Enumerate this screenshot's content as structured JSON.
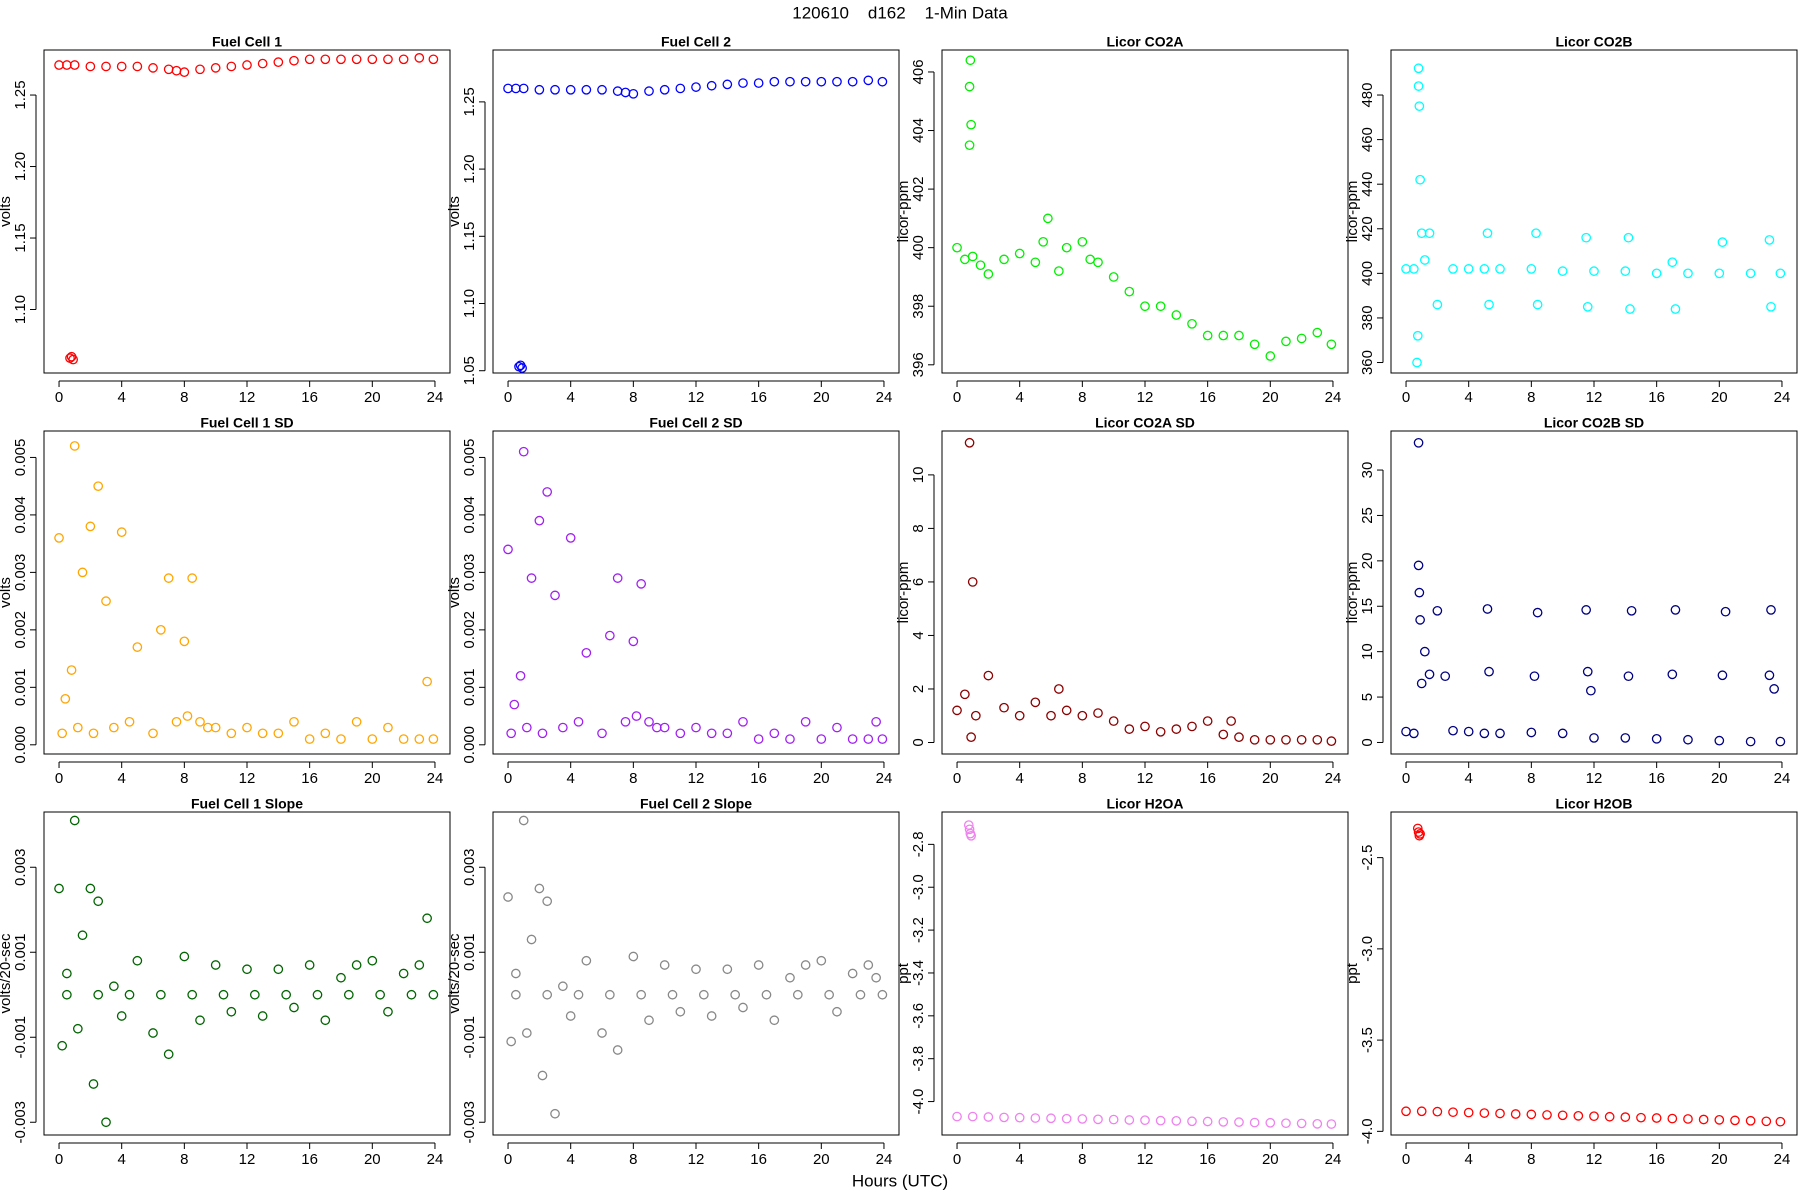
{
  "title": "120610    d162    1-Min Data",
  "xlabel": "Hours (UTC)",
  "chart_data": [
    {
      "type": "scatter",
      "title": "Fuel Cell 1",
      "ylabel": "volts",
      "color": "#ff0000",
      "x": [
        0,
        0.5,
        0.7,
        0.8,
        0.9,
        1,
        2,
        3,
        4,
        5,
        6,
        7,
        7.5,
        8,
        9,
        10,
        11,
        12,
        13,
        14,
        15,
        16,
        17,
        18,
        19,
        20,
        21,
        22,
        23,
        23.9
      ],
      "values": [
        1.271,
        1.271,
        1.066,
        1.067,
        1.065,
        1.271,
        1.27,
        1.27,
        1.27,
        1.27,
        1.269,
        1.268,
        1.267,
        1.266,
        1.268,
        1.269,
        1.27,
        1.271,
        1.272,
        1.273,
        1.274,
        1.275,
        1.275,
        1.275,
        1.275,
        1.275,
        1.275,
        1.275,
        1.276,
        1.275
      ],
      "xlim": [
        -0.96,
        24.96
      ],
      "xticks": [
        0,
        4,
        8,
        12,
        16,
        20,
        24
      ],
      "ylim": [
        1.0556,
        1.2815
      ],
      "yticks": [
        {
          "value": 1.1,
          "label": "1.10"
        },
        1.15,
        {
          "value": 1.2,
          "label": "1.20"
        },
        1.25
      ]
    },
    {
      "type": "scatter",
      "title": "Fuel Cell 2",
      "ylabel": "volts",
      "color": "#0000ff",
      "x": [
        0,
        0.5,
        0.7,
        0.8,
        0.9,
        1,
        2,
        3,
        4,
        5,
        6,
        7,
        7.5,
        8,
        9,
        10,
        11,
        12,
        13,
        14,
        15,
        16,
        17,
        18,
        19,
        20,
        21,
        22,
        23,
        23.9
      ],
      "values": [
        1.26,
        1.26,
        1.053,
        1.054,
        1.052,
        1.26,
        1.259,
        1.259,
        1.259,
        1.259,
        1.259,
        1.258,
        1.257,
        1.256,
        1.258,
        1.259,
        1.26,
        1.261,
        1.262,
        1.263,
        1.264,
        1.264,
        1.265,
        1.265,
        1.265,
        1.265,
        1.265,
        1.265,
        1.266,
        1.265
      ],
      "xlim": [
        -0.96,
        24.96
      ],
      "xticks": [
        0,
        4,
        8,
        12,
        16,
        20,
        24
      ],
      "ylim": [
        1.0483,
        1.2886
      ],
      "yticks": [
        1.05,
        {
          "value": 1.1,
          "label": "1.10"
        },
        1.15,
        {
          "value": 1.2,
          "label": "1.20"
        },
        1.25
      ]
    },
    {
      "type": "scatter",
      "title": "Licor CO2A",
      "ylabel": "licor-ppm",
      "color": "#00ee00",
      "x": [
        0,
        0.5,
        0.8,
        0.8,
        0.85,
        0.9,
        1,
        1.5,
        2,
        3,
        4,
        5,
        5.5,
        5.8,
        6.5,
        7,
        8,
        8.5,
        9,
        10,
        11,
        12,
        13,
        14,
        15,
        16,
        17,
        18,
        19,
        20,
        21,
        22,
        23,
        23.9
      ],
      "values": [
        400.0,
        399.6,
        403.5,
        405.5,
        406.4,
        404.2,
        399.7,
        399.4,
        399.1,
        399.6,
        399.8,
        399.5,
        400.2,
        401.0,
        399.2,
        400.0,
        400.2,
        399.6,
        399.5,
        399.0,
        398.5,
        398.0,
        398.0,
        397.7,
        397.4,
        397.0,
        397.0,
        397.0,
        396.7,
        396.3,
        396.8,
        396.9,
        397.1,
        396.7
      ],
      "xlim": [
        -0.96,
        24.96
      ],
      "xticks": [
        0,
        4,
        8,
        12,
        16,
        20,
        24
      ],
      "ylim": [
        395.72,
        406.75
      ],
      "yticks": [
        396,
        398,
        400,
        402,
        404,
        406
      ]
    },
    {
      "type": "scatter",
      "title": "Licor CO2B",
      "ylabel": "licor-ppm",
      "color": "#00ffff",
      "x": [
        0,
        0.5,
        0.7,
        0.75,
        0.8,
        0.8,
        0.85,
        0.9,
        1,
        1.2,
        1.5,
        2,
        3,
        4,
        5,
        5.2,
        5.3,
        6,
        8,
        8.3,
        8.4,
        10,
        11.5,
        11.6,
        12,
        14,
        14.2,
        14.3,
        16,
        17,
        17.2,
        18,
        20,
        20.2,
        22,
        23.2,
        23.3,
        23.9
      ],
      "values": [
        402,
        402,
        360,
        372,
        492,
        484,
        475,
        442,
        418,
        406,
        418,
        386,
        402,
        402,
        402,
        418,
        386,
        402,
        402,
        418,
        386,
        401,
        416,
        385,
        401,
        401,
        416,
        384,
        400,
        405,
        384,
        400,
        400,
        414,
        400,
        415,
        385,
        400
      ],
      "xlim": [
        -0.96,
        24.96
      ],
      "xticks": [
        0,
        4,
        8,
        12,
        16,
        20,
        24
      ],
      "ylim": [
        355.3,
        500.2
      ],
      "yticks": [
        360,
        380,
        400,
        420,
        440,
        460,
        480
      ]
    },
    {
      "type": "scatter",
      "title": "Fuel Cell 1 SD",
      "ylabel": "volts",
      "color": "#ffa500",
      "x": [
        0,
        0.2,
        0.4,
        0.8,
        1,
        1.2,
        1.5,
        2,
        2.2,
        2.5,
        3,
        3.5,
        4,
        4.5,
        5,
        6,
        6.5,
        7,
        7.5,
        8,
        8.2,
        8.5,
        9,
        9.5,
        10,
        11,
        12,
        13,
        14,
        15,
        16,
        17,
        18,
        19,
        20,
        21,
        22,
        23,
        23.5,
        23.9
      ],
      "values": [
        0.0036,
        0.0002,
        0.0008,
        0.0013,
        0.0052,
        0.0003,
        0.003,
        0.0038,
        0.0002,
        0.0045,
        0.0025,
        0.0003,
        0.0037,
        0.0004,
        0.0017,
        0.0002,
        0.002,
        0.0029,
        0.0004,
        0.0018,
        0.0005,
        0.0029,
        0.0004,
        0.0003,
        0.0003,
        0.0002,
        0.0003,
        0.0002,
        0.0002,
        0.0004,
        0.0001,
        0.0002,
        0.0001,
        0.0004,
        0.0001,
        0.0003,
        0.0001,
        0.0001,
        0.0011,
        0.0001
      ],
      "xlim": [
        -0.96,
        24.96
      ],
      "xticks": [
        0,
        4,
        8,
        12,
        16,
        20,
        24
      ],
      "ylim": [
        -0.00016,
        0.00546
      ],
      "yticks": [
        {
          "value": 0,
          "label": "0.000"
        },
        0.001,
        0.002,
        0.003,
        0.004,
        0.005
      ]
    },
    {
      "type": "scatter",
      "title": "Fuel Cell 2 SD",
      "ylabel": "volts",
      "color": "#a020f0",
      "x": [
        0,
        0.2,
        0.4,
        0.8,
        1,
        1.2,
        1.5,
        2,
        2.2,
        2.5,
        3,
        3.5,
        4,
        4.5,
        5,
        6,
        6.5,
        7,
        7.5,
        8,
        8.2,
        8.5,
        9,
        9.5,
        10,
        11,
        12,
        13,
        14,
        15,
        16,
        17,
        18,
        19,
        20,
        21,
        22,
        23,
        23.5,
        23.9
      ],
      "values": [
        0.0034,
        0.0002,
        0.0007,
        0.0012,
        0.0051,
        0.0003,
        0.0029,
        0.0039,
        0.0002,
        0.0044,
        0.0026,
        0.0003,
        0.0036,
        0.0004,
        0.0016,
        0.0002,
        0.0019,
        0.0029,
        0.0004,
        0.0018,
        0.0005,
        0.0028,
        0.0004,
        0.0003,
        0.0003,
        0.0002,
        0.0003,
        0.0002,
        0.0002,
        0.0004,
        0.0001,
        0.0002,
        0.0001,
        0.0004,
        0.0001,
        0.0003,
        0.0001,
        0.0001,
        0.0004,
        0.0001
      ],
      "xlim": [
        -0.96,
        24.96
      ],
      "xticks": [
        0,
        4,
        8,
        12,
        16,
        20,
        24
      ],
      "ylim": [
        -0.00016,
        0.00546
      ],
      "yticks": [
        {
          "value": 0,
          "label": "0.000"
        },
        0.001,
        0.002,
        0.003,
        0.004,
        0.005
      ]
    },
    {
      "type": "scatter",
      "title": "Licor CO2A SD",
      "ylabel": "licor-ppm",
      "color": "#8b0000",
      "x": [
        0,
        0.5,
        0.8,
        0.9,
        1,
        1.2,
        2,
        3,
        4,
        5,
        6,
        6.5,
        7,
        8,
        9,
        10,
        11,
        12,
        13,
        14,
        15,
        16,
        17,
        17.5,
        18,
        19,
        20,
        21,
        22,
        23,
        23.9
      ],
      "values": [
        1.2,
        1.8,
        11.2,
        0.2,
        6.0,
        1.0,
        2.5,
        1.3,
        1.0,
        1.5,
        1.0,
        2.0,
        1.2,
        1.0,
        1.1,
        0.8,
        0.5,
        0.6,
        0.4,
        0.5,
        0.6,
        0.8,
        0.3,
        0.8,
        0.2,
        0.1,
        0.1,
        0.1,
        0.1,
        0.1,
        0.05
      ],
      "xlim": [
        -0.96,
        24.96
      ],
      "xticks": [
        0,
        4,
        8,
        12,
        16,
        20,
        24
      ],
      "ylim": [
        -0.43,
        11.64
      ],
      "yticks": [
        0,
        2,
        4,
        6,
        8,
        10
      ]
    },
    {
      "type": "scatter",
      "title": "Licor CO2B SD",
      "ylabel": "licor-ppm",
      "color": "#000080",
      "x": [
        0,
        0.5,
        0.8,
        0.8,
        0.85,
        0.9,
        1,
        1.2,
        1.5,
        2,
        2.5,
        3,
        4,
        5,
        5.2,
        5.3,
        6,
        8,
        8.2,
        8.4,
        10,
        11.5,
        11.6,
        11.8,
        12,
        14,
        14.2,
        14.4,
        16,
        17,
        17.2,
        18,
        20,
        20.2,
        20.4,
        22,
        23.2,
        23.3,
        23.5,
        23.9
      ],
      "values": [
        1.2,
        1.0,
        33,
        19.5,
        16.5,
        13.5,
        6.5,
        10,
        7.5,
        14.5,
        7.3,
        1.3,
        1.2,
        1.0,
        14.7,
        7.8,
        1.0,
        1.1,
        7.3,
        14.3,
        1.0,
        14.6,
        7.8,
        5.7,
        0.5,
        0.5,
        7.3,
        14.5,
        0.4,
        7.5,
        14.6,
        0.3,
        0.2,
        7.4,
        14.4,
        0.1,
        7.4,
        14.6,
        5.9,
        0.1
      ],
      "xlim": [
        -0.96,
        24.96
      ],
      "xticks": [
        0,
        4,
        8,
        12,
        16,
        20,
        24
      ],
      "ylim": [
        -1.27,
        34.3
      ],
      "yticks": [
        0,
        5,
        10,
        15,
        20,
        25,
        30
      ]
    },
    {
      "type": "scatter",
      "title": "Fuel Cell 1 Slope",
      "ylabel": "volts/20-sec",
      "color": "#006400",
      "x": [
        0,
        0.2,
        0.5,
        1,
        1.2,
        1.5,
        2,
        2.2,
        2.5,
        3,
        3.5,
        4,
        5,
        6,
        7,
        8,
        9,
        10,
        11,
        12,
        13,
        14,
        15,
        16,
        17,
        18,
        19,
        20,
        21,
        22,
        23,
        23.5,
        23.9,
        0.5,
        2.5,
        4.5,
        6.5,
        8.5,
        10.5,
        12.5,
        14.5,
        16.5,
        18.5,
        20.5,
        22.5
      ],
      "values": [
        0.0025,
        -0.0012,
        0.0005,
        0.0041,
        -0.0008,
        0.0014,
        0.0025,
        -0.0021,
        0.0022,
        -0.003,
        0.0002,
        -0.0005,
        0.0008,
        -0.0009,
        -0.0014,
        0.0009,
        -0.0006,
        0.0007,
        -0.0004,
        0.0006,
        -0.0005,
        0.0006,
        -0.0003,
        0.0007,
        -0.0006,
        0.0004,
        0.0007,
        0.0008,
        -0.0004,
        0.0005,
        0.0007,
        0.0018,
        0,
        0,
        0,
        0,
        0,
        0,
        0,
        0,
        0,
        0,
        0,
        0,
        0
      ],
      "xlim": [
        -0.96,
        24.96
      ],
      "xticks": [
        0,
        4,
        8,
        12,
        16,
        20,
        24
      ],
      "ylim": [
        -0.0033,
        0.0043
      ],
      "yticks": [
        -0.003,
        -0.001,
        0.001,
        0.003
      ]
    },
    {
      "type": "scatter",
      "title": "Fuel Cell 2 Slope",
      "ylabel": "volts/20-sec",
      "color": "#888888",
      "x": [
        0,
        0.2,
        0.5,
        1,
        1.2,
        1.5,
        2,
        2.2,
        2.5,
        3,
        3.5,
        4,
        5,
        6,
        7,
        8,
        9,
        10,
        11,
        12,
        13,
        14,
        15,
        16,
        17,
        18,
        19,
        20,
        21,
        22,
        23,
        23.5,
        23.9,
        0.5,
        2.5,
        4.5,
        6.5,
        8.5,
        10.5,
        12.5,
        14.5,
        16.5,
        18.5,
        20.5,
        22.5
      ],
      "values": [
        0.0023,
        -0.0011,
        0.0005,
        0.0041,
        -0.0009,
        0.0013,
        0.0025,
        -0.0019,
        0.0022,
        -0.0028,
        0.0002,
        -0.0005,
        0.0008,
        -0.0009,
        -0.0013,
        0.0009,
        -0.0006,
        0.0007,
        -0.0004,
        0.0006,
        -0.0005,
        0.0006,
        -0.0003,
        0.0007,
        -0.0006,
        0.0004,
        0.0007,
        0.0008,
        -0.0004,
        0.0005,
        0.0007,
        0.0004,
        0,
        0,
        0,
        0,
        0,
        0,
        0,
        0,
        0,
        0,
        0,
        0,
        0
      ],
      "xlim": [
        -0.96,
        24.96
      ],
      "xticks": [
        0,
        4,
        8,
        12,
        16,
        20,
        24
      ],
      "ylim": [
        -0.0033,
        0.0043
      ],
      "yticks": [
        -0.003,
        -0.001,
        0.001,
        0.003
      ]
    },
    {
      "type": "scatter",
      "title": "Licor H2OA",
      "ylabel": "ppt",
      "color": "#ee82ee",
      "x": [
        0,
        0.75,
        0.8,
        0.85,
        0.9,
        1,
        2,
        3,
        4,
        5,
        6,
        7,
        8,
        9,
        10,
        11,
        12,
        13,
        14,
        15,
        16,
        17,
        18,
        19,
        20,
        21,
        22,
        23,
        23.9
      ],
      "values": [
        -4.07,
        -2.71,
        -2.73,
        -2.75,
        -2.76,
        -4.07,
        -4.072,
        -4.074,
        -4.075,
        -4.077,
        -4.078,
        -4.08,
        -4.081,
        -4.083,
        -4.084,
        -4.086,
        -4.087,
        -4.089,
        -4.09,
        -4.092,
        -4.093,
        -4.095,
        -4.096,
        -4.098,
        -4.099,
        -4.101,
        -4.102,
        -4.104,
        -4.105
      ],
      "xlim": [
        -0.96,
        24.96
      ],
      "xticks": [
        0,
        4,
        8,
        12,
        16,
        20,
        24
      ],
      "ylim": [
        -4.156,
        -2.649
      ],
      "yticks": [
        -2.8,
        {
          "value": -3,
          "label": "-3.0"
        },
        -3.2,
        -3.4,
        -3.6,
        -3.8,
        {
          "value": -4,
          "label": "-4.0"
        }
      ]
    },
    {
      "type": "scatter",
      "title": "Licor H2OB",
      "ylabel": "ppt",
      "color": "#ff0000",
      "x": [
        0,
        0.75,
        0.8,
        0.85,
        0.9,
        1,
        2,
        3,
        4,
        5,
        6,
        7,
        8,
        9,
        10,
        11,
        12,
        13,
        14,
        15,
        16,
        17,
        18,
        19,
        20,
        21,
        22,
        23,
        23.9
      ],
      "values": [
        -3.89,
        -2.34,
        -2.36,
        -2.38,
        -2.37,
        -3.89,
        -3.892,
        -3.895,
        -3.897,
        -3.9,
        -3.902,
        -3.905,
        -3.907,
        -3.91,
        -3.912,
        -3.915,
        -3.917,
        -3.92,
        -3.922,
        -3.925,
        -3.927,
        -3.93,
        -3.932,
        -3.935,
        -3.937,
        -3.94,
        -3.942,
        -3.945,
        -3.947
      ],
      "xlim": [
        -0.96,
        24.96
      ],
      "xticks": [
        0,
        4,
        8,
        12,
        16,
        20,
        24
      ],
      "ylim": [
        -4.02,
        -2.25
      ],
      "yticks": [
        -2.5,
        {
          "value": -3,
          "label": "-3.0"
        },
        -3.5,
        {
          "value": -4,
          "label": "-4.0"
        }
      ]
    }
  ]
}
